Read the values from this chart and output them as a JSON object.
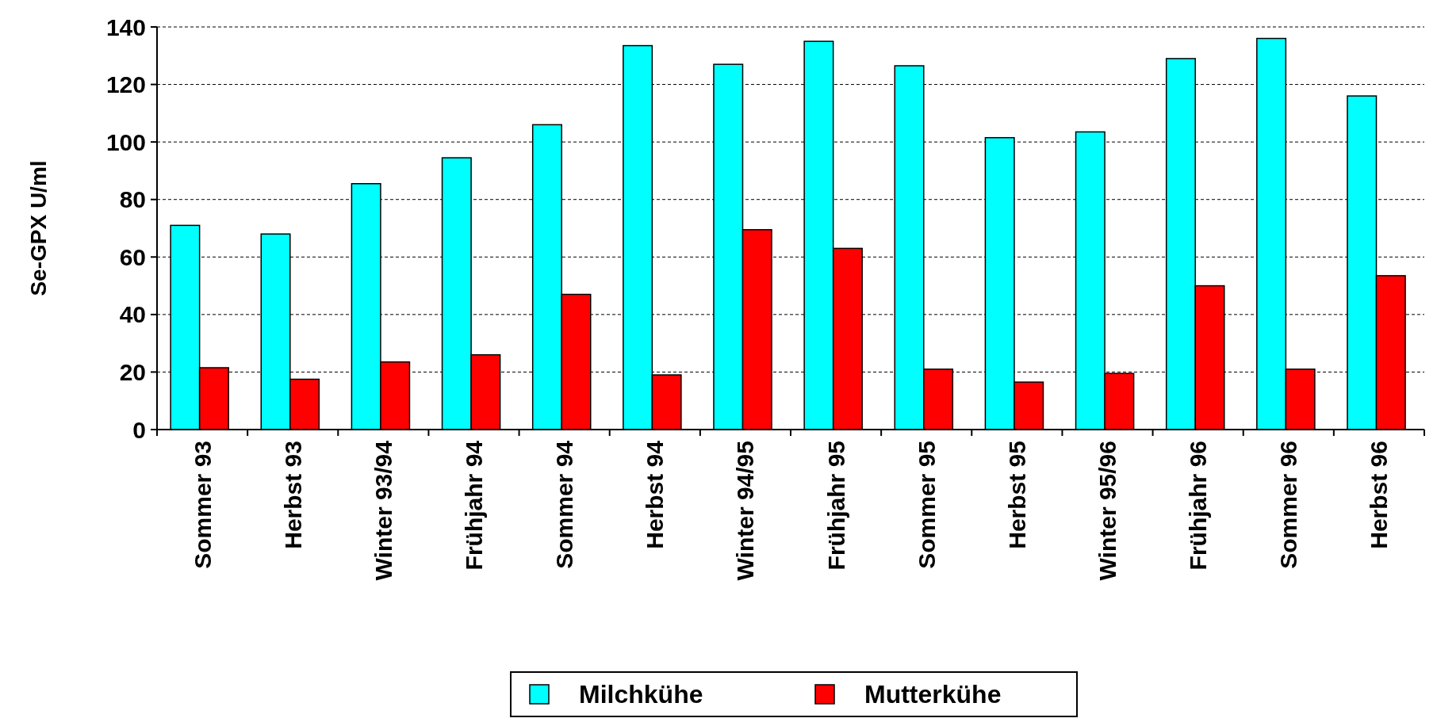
{
  "chart_data": {
    "type": "bar",
    "ylabel": "Se-GPX U/ml",
    "categories": [
      "Sommer 93",
      "Herbst 93",
      "Winter 93/94",
      "Frühjahr 94",
      "Sommer 94",
      "Herbst 94",
      "Winter 94/95",
      "Frühjahr 95",
      "Sommer 95",
      "Herbst 95",
      "Winter 95/96",
      "Frühjahr 96",
      "Sommer 96",
      "Herbst 96"
    ],
    "series": [
      {
        "name": "Milchkühe",
        "color": "#00ffff",
        "values": [
          71,
          68,
          85.5,
          94.5,
          106,
          133.5,
          127,
          135,
          126.5,
          101.5,
          103.5,
          129,
          136,
          116
        ]
      },
      {
        "name": "Mutterkühe",
        "color": "#ff0000",
        "values": [
          21.5,
          17.5,
          23.5,
          26,
          47,
          19,
          69.5,
          63,
          21,
          16.5,
          19.5,
          50,
          21,
          53.5
        ]
      }
    ],
    "ylim": [
      0,
      140
    ],
    "yticks": [
      0,
      20,
      40,
      60,
      80,
      100,
      120,
      140
    ],
    "grid": "y",
    "legend": "bottom"
  }
}
